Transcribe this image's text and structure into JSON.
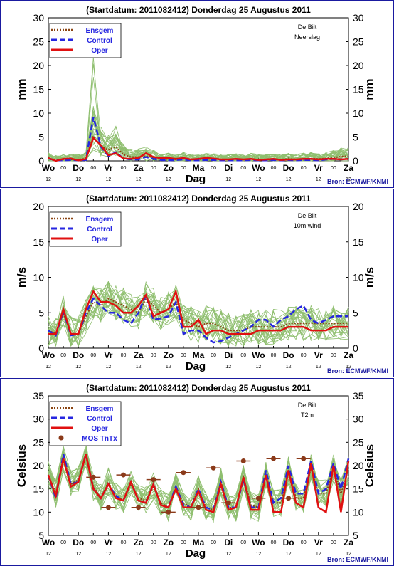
{
  "chart_data": [
    {
      "type": "line",
      "title": "(Startdatum: 2011082412)   Donderdag 25 Augustus  2011",
      "ylabel": "mm",
      "xlabel": "Dag",
      "ylim": [
        0,
        30
      ],
      "yticks": [
        0,
        5,
        10,
        15,
        20,
        25,
        30
      ],
      "location": "De Bilt",
      "variable": "Neerslag",
      "source": "Bron: ECMWF/KNMI",
      "legend": [
        "Ensgem",
        "Control",
        "Oper"
      ],
      "series": [
        {
          "name": "Ensgem",
          "values": [
            0.5,
            0.2,
            0.3,
            0.3,
            0.3,
            0.5,
            5.2,
            3.0,
            2.3,
            3.0,
            1.3,
            0.8,
            0.8,
            1.0,
            0.7,
            0.3,
            0.4,
            0.3,
            0.5,
            0.3,
            0.3,
            0.4,
            0.4,
            0.3,
            0.3,
            0.4,
            0.3,
            0.4,
            0.3,
            0.3,
            0.4,
            0.3,
            0.4,
            0.3,
            0.4,
            0.5,
            0.4,
            0.5,
            0.7,
            0.9,
            1.0
          ]
        },
        {
          "name": "Control",
          "values": [
            0.5,
            0.1,
            0.1,
            0.2,
            0.1,
            0.2,
            9.2,
            3.0,
            1.0,
            1.8,
            0.5,
            0.3,
            0.3,
            0.8,
            0.4,
            0.2,
            0.1,
            0.2,
            0.3,
            0.1,
            0.1,
            0.2,
            0.2,
            0.1,
            0.1,
            0.1,
            0.1,
            0.2,
            0.1,
            0.1,
            0.2,
            0.1,
            0.2,
            0.1,
            0.2,
            0.2,
            0.1,
            0.3,
            0.4,
            0.3,
            0.4
          ]
        },
        {
          "name": "Oper",
          "values": [
            0.6,
            0.0,
            0.4,
            0.5,
            0.1,
            0.4,
            4.8,
            3.3,
            1.2,
            1.6,
            0.5,
            0.4,
            0.6,
            1.6,
            0.8,
            0.6,
            0.6,
            0.4,
            0.6,
            0.3,
            0.4,
            0.6,
            0.5,
            0.3,
            0.3,
            0.4,
            0.3,
            0.4,
            0.2,
            0.3,
            0.4,
            0.2,
            0.3,
            0.3,
            0.4,
            0.4,
            0.3,
            0.4,
            0.4,
            0.3,
            0.4
          ]
        }
      ]
    },
    {
      "type": "line",
      "title": "(Startdatum: 2011082412)   Donderdag 25 Augustus  2011",
      "ylabel": "m/s",
      "xlabel": "Dag",
      "ylim": [
        0,
        20
      ],
      "yticks": [
        0,
        5,
        10,
        15,
        20
      ],
      "location": "De Bilt",
      "variable": "10m wind",
      "source": "Bron: ECMWF/KNMI",
      "legend": [
        "Ensgem",
        "Control",
        "Oper"
      ],
      "series": [
        {
          "name": "Ensgem",
          "values": [
            2.5,
            2.0,
            5.0,
            2.0,
            2.0,
            4.5,
            6.5,
            6.0,
            7.0,
            6.5,
            6.0,
            5.5,
            5.0,
            7.0,
            6.0,
            5.0,
            5.5,
            6.5,
            4.0,
            3.5,
            3.0,
            3.5,
            3.5,
            3.0,
            2.5,
            2.5,
            2.5,
            3.0,
            3.0,
            3.0,
            3.0,
            3.0,
            3.5,
            3.5,
            3.5,
            3.5,
            3.5,
            3.5,
            3.5,
            3.5,
            3.5
          ]
        },
        {
          "name": "Control",
          "values": [
            2.5,
            1.8,
            5.3,
            1.8,
            2.0,
            5.0,
            7.0,
            6.0,
            5.0,
            5.0,
            4.0,
            3.5,
            5.0,
            7.5,
            4.0,
            4.2,
            4.5,
            6.5,
            2.0,
            2.5,
            2.5,
            1.5,
            0.8,
            1.0,
            1.5,
            2.0,
            2.5,
            3.0,
            4.0,
            4.0,
            3.0,
            4.0,
            4.5,
            5.5,
            6.0,
            4.0,
            3.5,
            4.0,
            4.5,
            4.5,
            4.5
          ]
        },
        {
          "name": "Oper",
          "values": [
            2.0,
            2.0,
            5.5,
            2.0,
            2.0,
            5.5,
            8.0,
            6.5,
            6.5,
            6.0,
            5.0,
            5.0,
            6.0,
            7.5,
            4.5,
            5.0,
            5.5,
            8.0,
            3.0,
            3.0,
            4.0,
            2.0,
            2.5,
            2.5,
            2.0,
            2.0,
            2.0,
            2.0,
            2.5,
            2.5,
            2.5,
            2.5,
            3.0,
            3.0,
            3.0,
            2.5,
            2.5,
            2.5,
            3.0,
            3.0,
            3.0
          ]
        }
      ]
    },
    {
      "type": "line",
      "title": "(Startdatum: 2011082412)   Donderdag 25 Augustus  2011",
      "ylabel": "Celsius",
      "xlabel": "Dag",
      "ylim": [
        5,
        35
      ],
      "yticks": [
        5,
        10,
        15,
        20,
        25,
        30,
        35
      ],
      "location": "De Bilt",
      "variable": "T2m",
      "source": "Bron: ECMWF/KNMI",
      "legend": [
        "Ensgem",
        "Control",
        "Oper",
        "MOS TnTx"
      ],
      "series": [
        {
          "name": "Ensgem",
          "values": [
            18,
            14,
            21.5,
            16,
            17,
            22,
            15.5,
            13,
            16.5,
            13.5,
            12.5,
            16,
            13,
            12.5,
            15.5,
            12,
            11,
            15.5,
            12,
            11,
            15,
            11,
            10.5,
            16.5,
            11,
            11,
            17.5,
            11.5,
            11,
            18,
            12,
            12,
            19,
            13,
            13,
            19.5,
            14,
            14,
            19.5,
            14,
            19
          ]
        },
        {
          "name": "Control",
          "values": [
            18,
            13,
            22.5,
            16,
            16.5,
            22.5,
            15,
            13,
            16,
            13.5,
            12.5,
            16.5,
            12.5,
            12,
            16,
            11.5,
            11,
            15.5,
            11.5,
            11,
            15,
            11,
            10.5,
            16.5,
            11,
            11,
            17,
            11,
            11,
            19,
            12,
            13,
            20,
            14,
            14,
            21,
            14,
            15,
            20.5,
            15,
            21.5
          ]
        },
        {
          "name": "Oper",
          "values": [
            18,
            13.5,
            21.5,
            15.5,
            16.5,
            22.5,
            15,
            13,
            16,
            13,
            12.5,
            16.5,
            12.5,
            12,
            16,
            11.5,
            11,
            15,
            11,
            11,
            14.5,
            10.5,
            10,
            16,
            10.5,
            11,
            17.5,
            10.5,
            10.5,
            18,
            10,
            10,
            19,
            12,
            11,
            20.5,
            11,
            10,
            20,
            10,
            21
          ]
        }
      ],
      "mos_tntx": [
        17.5,
        11,
        18,
        11,
        17,
        10,
        18.5,
        11,
        19.5,
        12,
        21,
        13,
        21.5,
        13,
        21.5
      ]
    }
  ],
  "x_axis": {
    "day_labels": [
      "Wo",
      "Do",
      "Vr",
      "Za",
      "Zo",
      "Ma",
      "Di",
      "Wo",
      "Do",
      "Vr",
      "Za"
    ],
    "hour_labels": [
      "12",
      "00"
    ]
  },
  "colors": {
    "ensemble_members": "#8fbf6f",
    "Ensgem": "#8b4513",
    "Control": "#2626e0",
    "Oper": "#e01010",
    "MOS TnTx": "#8b3a1a",
    "panel_border": "#1a1aa0",
    "source": "#1a1aa0"
  }
}
